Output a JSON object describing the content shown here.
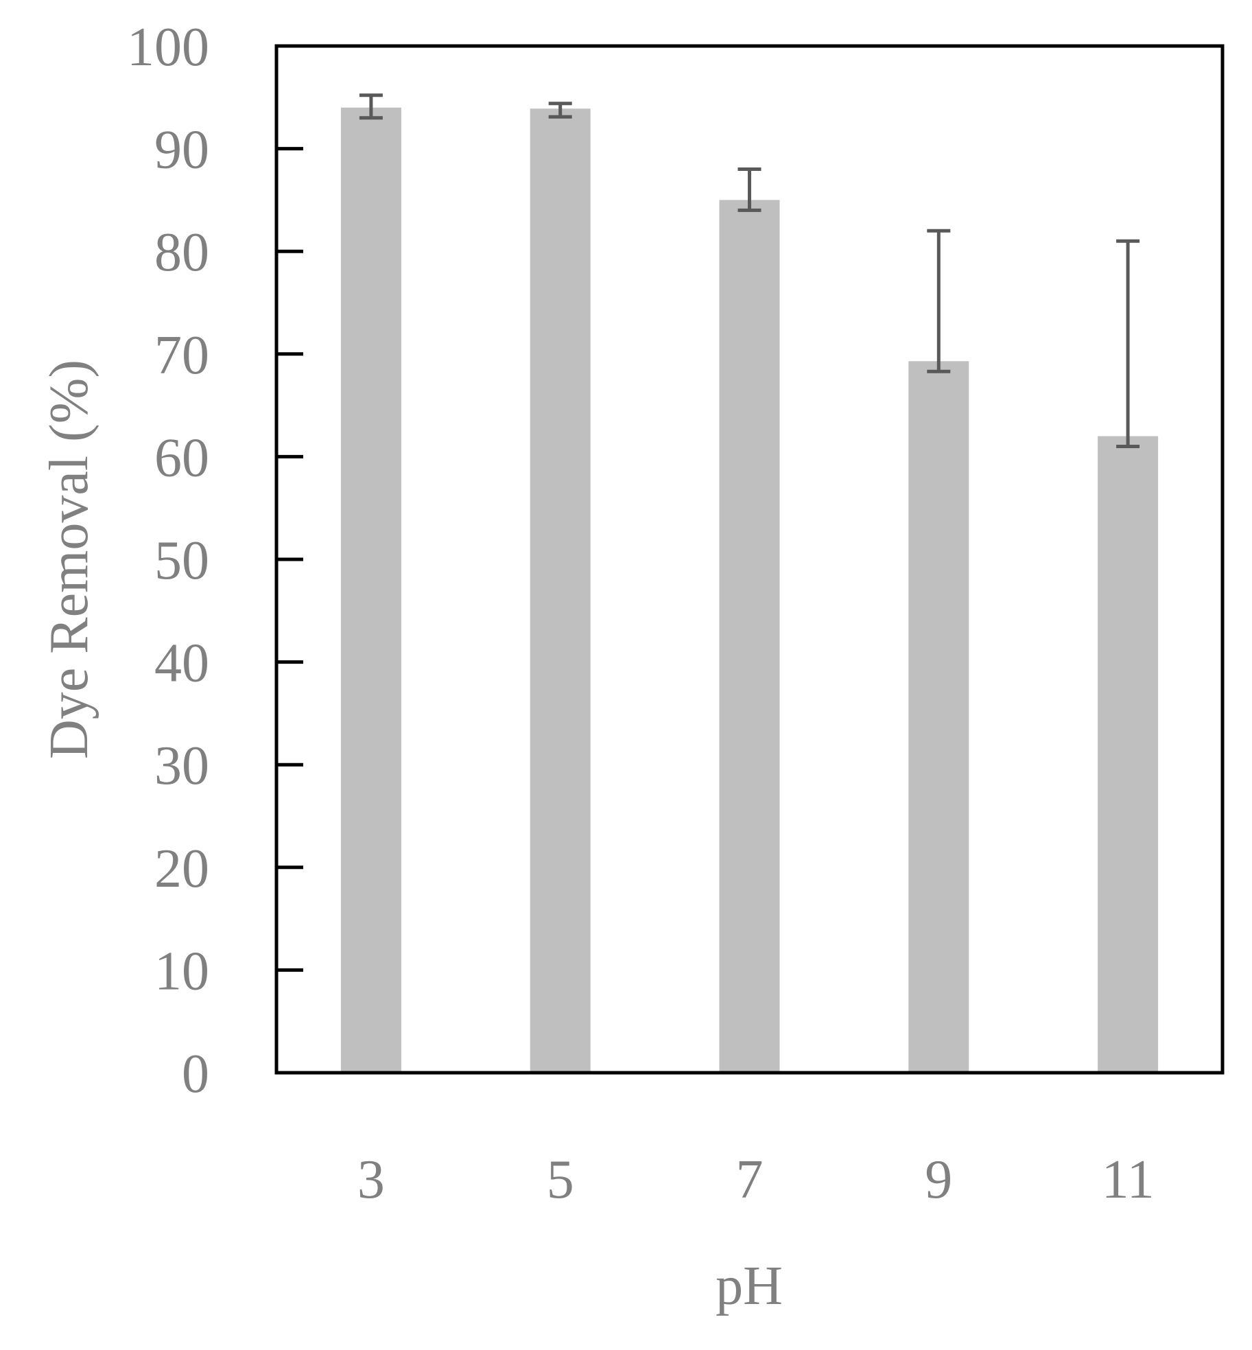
{
  "chart_data": {
    "type": "bar",
    "categories": [
      "3",
      "5",
      "7",
      "9",
      "11"
    ],
    "values": [
      94,
      93.9,
      85,
      69.3,
      62
    ],
    "error": {
      "lower": [
        93.0,
        93.1,
        84.0,
        68.3,
        61.0
      ],
      "upper": [
        95.2,
        94.4,
        88.0,
        82.0,
        81.0
      ]
    },
    "xlabel": "pH",
    "ylabel": "Dye Removal (%)",
    "ylim": [
      0,
      100
    ],
    "yticks": [
      0,
      10,
      20,
      30,
      40,
      50,
      60,
      70,
      80,
      90,
      100
    ],
    "grid": false,
    "legend": "none",
    "colors": {
      "bar": "#bfbfbf",
      "error_bar": "#595959",
      "axis": "#000000",
      "text": "#808080"
    }
  }
}
